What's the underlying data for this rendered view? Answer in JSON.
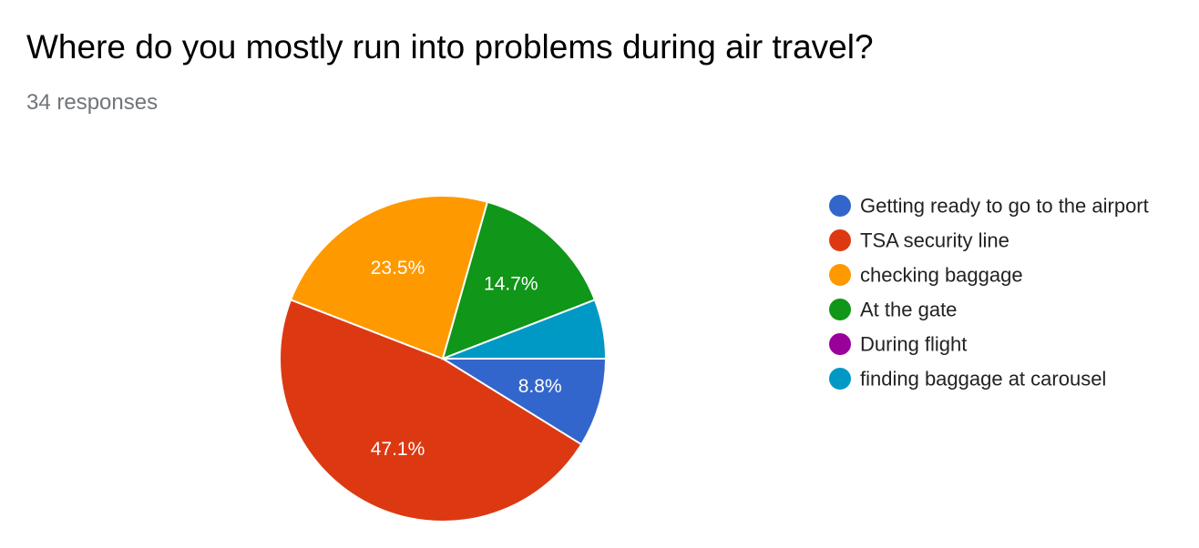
{
  "header": {
    "title": "Where do you mostly run into problems during air travel?",
    "responses": "34 responses"
  },
  "chart_data": {
    "type": "pie",
    "title": "Where do you mostly run into problems during air travel?",
    "total_responses": 34,
    "legend_position": "right",
    "slices": [
      {
        "name": "Getting ready to go to the airport",
        "count": 3,
        "percent": 8.8,
        "label": "8.8%",
        "color": "#3366cc"
      },
      {
        "name": "TSA security line",
        "count": 16,
        "percent": 47.1,
        "label": "47.1%",
        "color": "#dc3912"
      },
      {
        "name": "checking baggage",
        "count": 8,
        "percent": 23.5,
        "label": "23.5%",
        "color": "#ff9900"
      },
      {
        "name": "At the gate",
        "count": 5,
        "percent": 14.7,
        "label": "14.7%",
        "color": "#109618"
      },
      {
        "name": "During flight",
        "count": 0,
        "percent": 0,
        "label": "",
        "color": "#990099"
      },
      {
        "name": "finding baggage at carousel",
        "count": 2,
        "percent": 5.9,
        "label": "",
        "color": "#0099c6"
      }
    ]
  }
}
